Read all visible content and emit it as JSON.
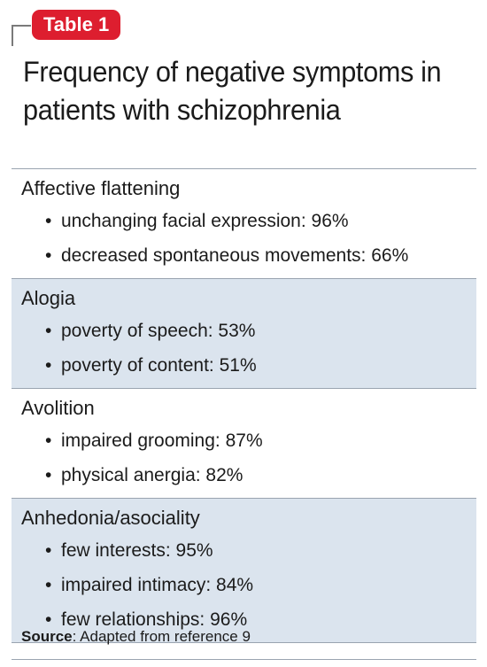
{
  "badge": "Table 1",
  "title": "Frequency of negative symptoms in patients with schizophrenia",
  "sections": [
    {
      "heading": "Affective flattening",
      "items": [
        "unchanging facial expression: 96%",
        "decreased spontaneous movements: 66%"
      ]
    },
    {
      "heading": "Alogia",
      "items": [
        "poverty of speech: 53%",
        "poverty of content: 51%"
      ]
    },
    {
      "heading": "Avolition",
      "items": [
        "impaired grooming: 87%",
        "physical anergia: 82%"
      ]
    },
    {
      "heading": "Anhedonia/asociality",
      "items": [
        "few interests: 95%",
        "impaired intimacy: 84%",
        "few relationships: 96%"
      ]
    }
  ],
  "source": {
    "label": "Source",
    "text": ": Adapted from reference 9"
  },
  "colors": {
    "badge": "#dd1e2f",
    "shaded_row": "#dbe4ee",
    "rule": "#9aa4b0"
  }
}
